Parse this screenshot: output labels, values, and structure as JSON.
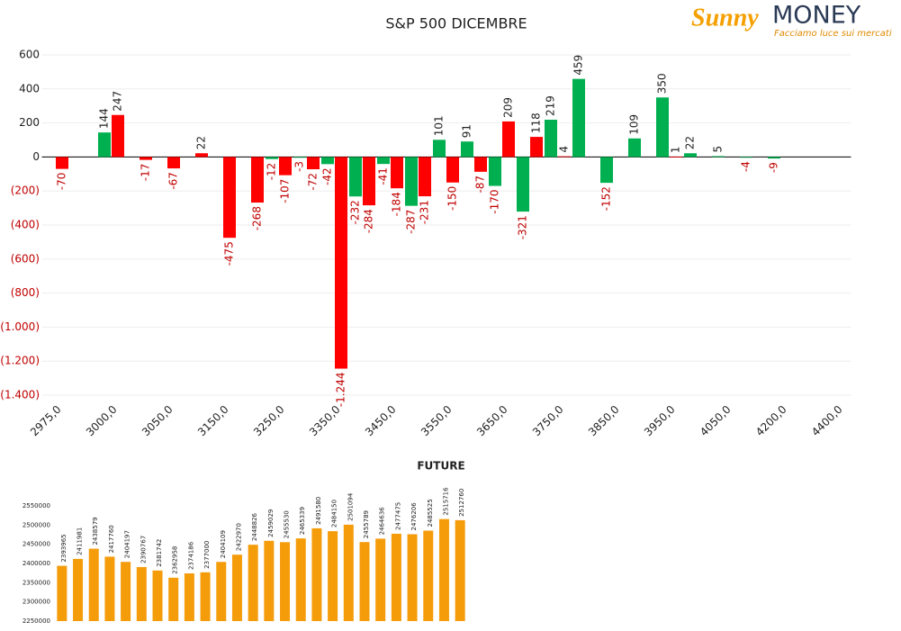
{
  "logo": {
    "brand": "Sunny",
    "name": "MONEY",
    "tagline": "Facciamo luce sui mercati"
  },
  "chart_data": [
    {
      "type": "bar",
      "title": "S&P 500 DICEMBRE",
      "categories": [
        "2975,0",
        null,
        "3000,0",
        null,
        "3050,0",
        null,
        "3150,0",
        null,
        "3250,0",
        null,
        "3350,0",
        null,
        "3450,0",
        null,
        "3550,0",
        null,
        "3650,0",
        null,
        "3750,0",
        null,
        "3850,0",
        null,
        "3950,0",
        null,
        "4050,0",
        null,
        "4200,0",
        null,
        "4400,0"
      ],
      "series": [
        {
          "color": "#00b050",
          "values": [
            null,
            null,
            144,
            null,
            null,
            null,
            null,
            null,
            -12,
            -3,
            -42,
            -232,
            -41,
            -287,
            101,
            91,
            -170,
            -321,
            219,
            459,
            -152,
            109,
            350,
            22,
            5,
            -4,
            -9,
            null,
            null
          ],
          "value_labels": [
            null,
            null,
            "144",
            null,
            null,
            null,
            null,
            null,
            "-12",
            "-3",
            "-42",
            "-232",
            "-41",
            "-287",
            "101",
            "91",
            "-170",
            "-321",
            "219",
            "459",
            "-152",
            "109",
            "350",
            "22",
            "5",
            "-4",
            "-9",
            null,
            null
          ]
        },
        {
          "color": "#ff0000",
          "values": [
            -70,
            null,
            247,
            -17,
            -67,
            22,
            -475,
            -268,
            -107,
            -72,
            -1244,
            -284,
            -184,
            -231,
            -150,
            -87,
            209,
            118,
            4,
            null,
            null,
            null,
            1,
            null,
            null,
            null,
            null,
            null,
            null
          ],
          "value_labels": [
            "-70",
            null,
            "247",
            "-17",
            "-67",
            "22",
            "-475",
            "-268",
            "-107",
            "-72",
            "-1.244",
            "-284",
            "-184",
            "-231",
            "-150",
            "-87",
            "209",
            "118",
            "4",
            null,
            null,
            null,
            "1",
            null,
            null,
            null,
            null,
            null,
            null
          ]
        }
      ],
      "ylim": [
        -1400,
        600
      ],
      "yticks": [
        600,
        400,
        200,
        0,
        {
          "value": -200,
          "label": "(200)"
        },
        {
          "value": -400,
          "label": "(400)"
        },
        {
          "value": -600,
          "label": "(600)"
        },
        {
          "value": -800,
          "label": "(800)"
        },
        {
          "value": -1000,
          "label": "(1.000)"
        },
        {
          "value": -1200,
          "label": "(1.200)"
        },
        {
          "value": -1400,
          "label": "(1.400)"
        }
      ],
      "grid": true
    },
    {
      "type": "bar",
      "title": "FUTURE",
      "color": "#f59c0b",
      "values": [
        2393965,
        2411981,
        2438579,
        2417760,
        2404197,
        2390767,
        2381742,
        2362958,
        2374186,
        2377000,
        2404109,
        2422970,
        2448826,
        2459029,
        2455530,
        2465339,
        2491580,
        2484150,
        2501094,
        2455789,
        2464636,
        2477475,
        2476206,
        2485525,
        2515716,
        2512760
      ],
      "ylim": [
        2250000,
        2550000
      ],
      "yticks": [
        2550000,
        2500000,
        2450000,
        2400000,
        2350000,
        2300000,
        2250000
      ]
    }
  ]
}
